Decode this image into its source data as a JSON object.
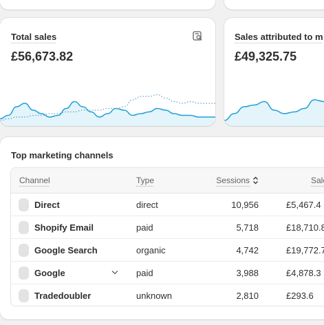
{
  "metrics": [
    {
      "title": "Total sales",
      "value": "£56,673.82",
      "icon": "report-search-icon",
      "chart_data": {
        "type": "line",
        "series": [
          {
            "values": [
              3,
              5,
              10,
              12,
              8,
              6,
              4,
              5,
              9,
              13,
              10,
              7,
              4,
              6,
              9,
              8,
              5,
              6,
              7,
              9,
              8,
              6,
              5,
              5,
              4,
              4,
              4
            ]
          },
          {
            "values": [
              2,
              3,
              4,
              4,
              5,
              5,
              6,
              6,
              7,
              7,
              8,
              8,
              8,
              9,
              9,
              10,
              14,
              16,
              16,
              17,
              15,
              13,
              12,
              13,
              12,
              12,
              12
            ],
            "style": "dotted"
          }
        ],
        "ylim": [
          0,
          20
        ]
      }
    },
    {
      "title": "Sales attributed to m",
      "value": "£49,325.75",
      "chart_data": {
        "type": "line",
        "series": [
          {
            "values": [
              2,
              6,
              10,
              11,
              13,
              8,
              6,
              7,
              9,
              14,
              13,
              10
            ]
          }
        ],
        "ylim": [
          0,
          20
        ]
      }
    }
  ],
  "channels": {
    "title": "Top marketing channels",
    "headers": {
      "channel": "Channel",
      "type": "Type",
      "sessions": "Sessions",
      "sales": "Sale"
    },
    "rows": [
      {
        "name": "Direct",
        "type": "direct",
        "sessions": "10,956",
        "sales": "£5,467.4"
      },
      {
        "name": "Shopify Email",
        "type": "paid",
        "sessions": "5,718",
        "sales": "£18,710.8"
      },
      {
        "name": "Google Search",
        "type": "organic",
        "sessions": "4,742",
        "sales": "£19,772.7"
      },
      {
        "name": "Google",
        "type": "paid",
        "sessions": "3,988",
        "sales": "£4,878.3",
        "expandable": true
      },
      {
        "name": "Tradedoubler",
        "type": "unknown",
        "sessions": "2,810",
        "sales": "£293.6"
      }
    ]
  },
  "colors": {
    "line": "#1fa0d6",
    "fill": "#e3f4fb",
    "comparison": "#5e9ec4"
  }
}
